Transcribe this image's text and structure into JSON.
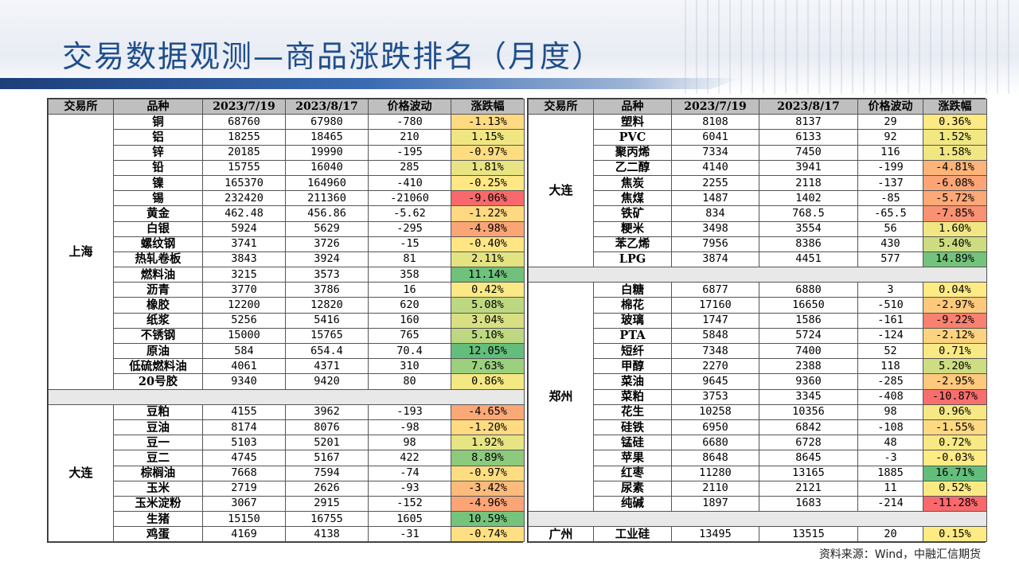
{
  "title": "交易数据观测—商品涨跌排名（月度）",
  "source": "资料来源：Wind，中融汇信期货",
  "headers": [
    "交易所",
    "品种",
    "2023/7/19",
    "2023/8/17",
    "价格波动",
    "涨跌幅"
  ],
  "colors": {
    "title": "#1f4e8c",
    "header_bg": "#bfbfbf",
    "strong_up": "#63be7b",
    "flat": "#ffeb84",
    "strong_down": "#f8696b"
  },
  "left": {
    "groups": [
      {
        "exchange": "上海",
        "rows": [
          {
            "name": "铜",
            "p1": "68760",
            "p2": "67980",
            "chg": "-780",
            "pct": "-1.13%",
            "v": -1.13
          },
          {
            "name": "铝",
            "p1": "18255",
            "p2": "18465",
            "chg": "210",
            "pct": "1.15%",
            "v": 1.15
          },
          {
            "name": "锌",
            "p1": "20185",
            "p2": "19990",
            "chg": "-195",
            "pct": "-0.97%",
            "v": -0.97
          },
          {
            "name": "铅",
            "p1": "15755",
            "p2": "16040",
            "chg": "285",
            "pct": "1.81%",
            "v": 1.81
          },
          {
            "name": "镍",
            "p1": "165370",
            "p2": "164960",
            "chg": "-410",
            "pct": "-0.25%",
            "v": -0.25
          },
          {
            "name": "锡",
            "p1": "232420",
            "p2": "211360",
            "chg": "-21060",
            "pct": "-9.06%",
            "v": -9.06
          },
          {
            "name": "黄金",
            "p1": "462.48",
            "p2": "456.86",
            "chg": "-5.62",
            "pct": "-1.22%",
            "v": -1.22
          },
          {
            "name": "白银",
            "p1": "5924",
            "p2": "5629",
            "chg": "-295",
            "pct": "-4.98%",
            "v": -4.98
          },
          {
            "name": "螺纹钢",
            "p1": "3741",
            "p2": "3726",
            "chg": "-15",
            "pct": "-0.40%",
            "v": -0.4
          },
          {
            "name": "热轧卷板",
            "p1": "3843",
            "p2": "3924",
            "chg": "81",
            "pct": "2.11%",
            "v": 2.11
          },
          {
            "name": "燃料油",
            "p1": "3215",
            "p2": "3573",
            "chg": "358",
            "pct": "11.14%",
            "v": 11.14
          },
          {
            "name": "沥青",
            "p1": "3770",
            "p2": "3786",
            "chg": "16",
            "pct": "0.42%",
            "v": 0.42
          },
          {
            "name": "橡胶",
            "p1": "12200",
            "p2": "12820",
            "chg": "620",
            "pct": "5.08%",
            "v": 5.08
          },
          {
            "name": "纸浆",
            "p1": "5256",
            "p2": "5416",
            "chg": "160",
            "pct": "3.04%",
            "v": 3.04
          },
          {
            "name": "不锈钢",
            "p1": "15000",
            "p2": "15765",
            "chg": "765",
            "pct": "5.10%",
            "v": 5.1
          },
          {
            "name": "原油",
            "p1": "584",
            "p2": "654.4",
            "chg": "70.4",
            "pct": "12.05%",
            "v": 12.05
          },
          {
            "name": "低硫燃料油",
            "p1": "4061",
            "p2": "4371",
            "chg": "310",
            "pct": "7.63%",
            "v": 7.63
          },
          {
            "name": "20号胶",
            "p1": "9340",
            "p2": "9420",
            "chg": "80",
            "pct": "0.86%",
            "v": 0.86
          }
        ]
      },
      {
        "exchange": "大连",
        "rows": [
          {
            "name": "豆粕",
            "p1": "4155",
            "p2": "3962",
            "chg": "-193",
            "pct": "-4.65%",
            "v": -4.65
          },
          {
            "name": "豆油",
            "p1": "8174",
            "p2": "8076",
            "chg": "-98",
            "pct": "-1.20%",
            "v": -1.2
          },
          {
            "name": "豆一",
            "p1": "5103",
            "p2": "5201",
            "chg": "98",
            "pct": "1.92%",
            "v": 1.92
          },
          {
            "name": "豆二",
            "p1": "4745",
            "p2": "5167",
            "chg": "422",
            "pct": "8.89%",
            "v": 8.89
          },
          {
            "name": "棕榈油",
            "p1": "7668",
            "p2": "7594",
            "chg": "-74",
            "pct": "-0.97%",
            "v": -0.97
          },
          {
            "name": "玉米",
            "p1": "2719",
            "p2": "2626",
            "chg": "-93",
            "pct": "-3.42%",
            "v": -3.42
          },
          {
            "name": "玉米淀粉",
            "p1": "3067",
            "p2": "2915",
            "chg": "-152",
            "pct": "-4.96%",
            "v": -4.96
          },
          {
            "name": "生猪",
            "p1": "15150",
            "p2": "16755",
            "chg": "1605",
            "pct": "10.59%",
            "v": 10.59
          },
          {
            "name": "鸡蛋",
            "p1": "4169",
            "p2": "4138",
            "chg": "-31",
            "pct": "-0.74%",
            "v": -0.74
          }
        ]
      }
    ]
  },
  "right": {
    "groups": [
      {
        "exchange": "大连",
        "rows": [
          {
            "name": "塑料",
            "p1": "8108",
            "p2": "8137",
            "chg": "29",
            "pct": "0.36%",
            "v": 0.36
          },
          {
            "name": "PVC",
            "p1": "6041",
            "p2": "6133",
            "chg": "92",
            "pct": "1.52%",
            "v": 1.52
          },
          {
            "name": "聚丙烯",
            "p1": "7334",
            "p2": "7450",
            "chg": "116",
            "pct": "1.58%",
            "v": 1.58
          },
          {
            "name": "乙二醇",
            "p1": "4140",
            "p2": "3941",
            "chg": "-199",
            "pct": "-4.81%",
            "v": -4.81
          },
          {
            "name": "焦炭",
            "p1": "2255",
            "p2": "2118",
            "chg": "-137",
            "pct": "-6.08%",
            "v": -6.08
          },
          {
            "name": "焦煤",
            "p1": "1487",
            "p2": "1402",
            "chg": "-85",
            "pct": "-5.72%",
            "v": -5.72
          },
          {
            "name": "铁矿",
            "p1": "834",
            "p2": "768.5",
            "chg": "-65.5",
            "pct": "-7.85%",
            "v": -7.85
          },
          {
            "name": "粳米",
            "p1": "3498",
            "p2": "3554",
            "chg": "56",
            "pct": "1.60%",
            "v": 1.6
          },
          {
            "name": "苯乙烯",
            "p1": "7956",
            "p2": "8386",
            "chg": "430",
            "pct": "5.40%",
            "v": 5.4
          },
          {
            "name": "LPG",
            "p1": "3874",
            "p2": "4451",
            "chg": "577",
            "pct": "14.89%",
            "v": 14.89
          }
        ]
      },
      {
        "exchange": "郑州",
        "rows": [
          {
            "name": "白糖",
            "p1": "6877",
            "p2": "6880",
            "chg": "3",
            "pct": "0.04%",
            "v": 0.04
          },
          {
            "name": "棉花",
            "p1": "17160",
            "p2": "16650",
            "chg": "-510",
            "pct": "-2.97%",
            "v": -2.97
          },
          {
            "name": "玻璃",
            "p1": "1747",
            "p2": "1586",
            "chg": "-161",
            "pct": "-9.22%",
            "v": -9.22
          },
          {
            "name": "PTA",
            "p1": "5848",
            "p2": "5724",
            "chg": "-124",
            "pct": "-2.12%",
            "v": -2.12
          },
          {
            "name": "短纤",
            "p1": "7348",
            "p2": "7400",
            "chg": "52",
            "pct": "0.71%",
            "v": 0.71
          },
          {
            "name": "甲醇",
            "p1": "2270",
            "p2": "2388",
            "chg": "118",
            "pct": "5.20%",
            "v": 5.2
          },
          {
            "name": "菜油",
            "p1": "9645",
            "p2": "9360",
            "chg": "-285",
            "pct": "-2.95%",
            "v": -2.95
          },
          {
            "name": "菜粕",
            "p1": "3753",
            "p2": "3345",
            "chg": "-408",
            "pct": "-10.87%",
            "v": -10.87
          },
          {
            "name": "花生",
            "p1": "10258",
            "p2": "10356",
            "chg": "98",
            "pct": "0.96%",
            "v": 0.96
          },
          {
            "name": "硅铁",
            "p1": "6950",
            "p2": "6842",
            "chg": "-108",
            "pct": "-1.55%",
            "v": -1.55
          },
          {
            "name": "锰硅",
            "p1": "6680",
            "p2": "6728",
            "chg": "48",
            "pct": "0.72%",
            "v": 0.72
          },
          {
            "name": "苹果",
            "p1": "8648",
            "p2": "8645",
            "chg": "-3",
            "pct": "-0.03%",
            "v": -0.03
          },
          {
            "name": "红枣",
            "p1": "11280",
            "p2": "13165",
            "chg": "1885",
            "pct": "16.71%",
            "v": 16.71
          },
          {
            "name": "尿素",
            "p1": "2110",
            "p2": "2121",
            "chg": "11",
            "pct": "0.52%",
            "v": 0.52
          },
          {
            "name": "纯碱",
            "p1": "1897",
            "p2": "1683",
            "chg": "-214",
            "pct": "-11.28%",
            "v": -11.28
          }
        ]
      },
      {
        "exchange": "广州",
        "rows": [
          {
            "name": "工业硅",
            "p1": "13495",
            "p2": "13515",
            "chg": "20",
            "pct": "0.15%",
            "v": 0.15
          }
        ]
      }
    ]
  }
}
